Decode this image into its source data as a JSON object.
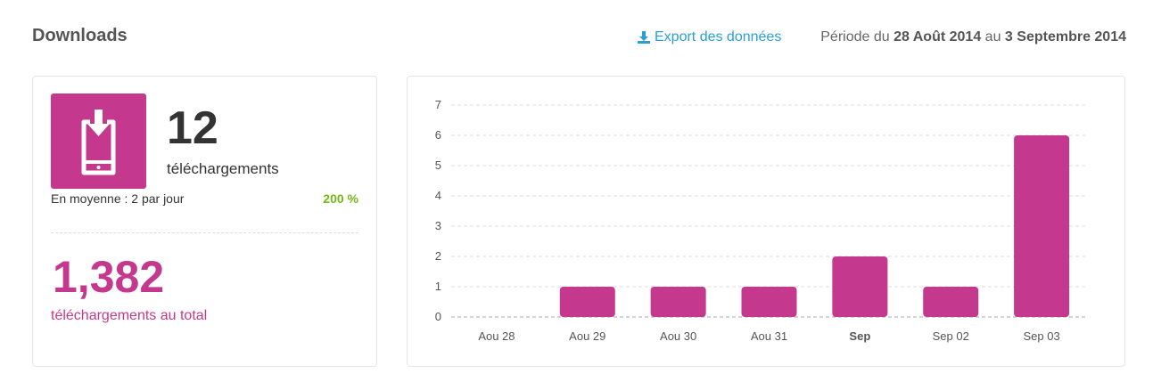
{
  "header": {
    "title": "Downloads",
    "export_label": "Export des données",
    "period_prefix": "Période du",
    "period_start": "28 Août 2014",
    "period_mid": "au",
    "period_end": "3 Septembre 2014"
  },
  "summary": {
    "count": "12",
    "count_label": "téléchargements",
    "average": "En moyenne : 2 par jour",
    "change": "200 %",
    "total": "1,382",
    "total_label": "téléchargements au total"
  },
  "colors": {
    "accent": "#c4398d",
    "positive": "#74b816",
    "link": "#2a9fd6"
  },
  "chart_data": {
    "type": "bar",
    "categories": [
      "Aou 28",
      "Aou 29",
      "Aou 30",
      "Aou 31",
      "Sep",
      "Sep 02",
      "Sep 03"
    ],
    "bold_categories": [
      "Sep"
    ],
    "values": [
      0,
      1,
      1,
      1,
      2,
      1,
      6
    ],
    "ylim": [
      0,
      7
    ],
    "yticks": [
      0,
      1,
      2,
      3,
      4,
      5,
      6,
      7
    ],
    "grid": true,
    "xlabel": "",
    "ylabel": "",
    "title": ""
  }
}
